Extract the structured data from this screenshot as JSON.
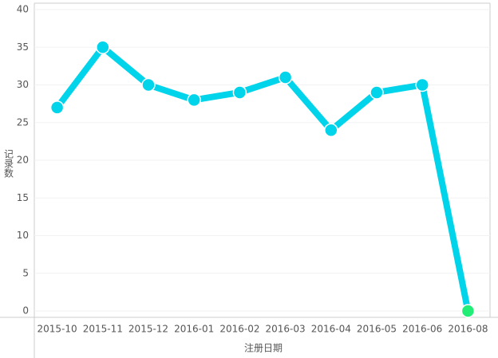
{
  "chart_data": {
    "type": "line",
    "x_label": "注册日期",
    "y_label": "记录数",
    "categories": [
      "2015-10",
      "2015-11",
      "2015-12",
      "2016-01",
      "2016-02",
      "2016-03",
      "2016-04",
      "2016-05",
      "2016-06",
      "2016-08"
    ],
    "series": [
      {
        "color": "#00d4ea",
        "values": [
          27,
          35,
          30,
          28,
          29,
          31,
          24,
          29,
          30,
          0
        ],
        "marker_colors": [
          "#00d4ea",
          "#00d4ea",
          "#00d4ea",
          "#00d4ea",
          "#00d4ea",
          "#00d4ea",
          "#00d4ea",
          "#00d4ea",
          "#00d4ea",
          "#22ee77"
        ]
      }
    ],
    "ylim": [
      0,
      40
    ],
    "yticks": [
      0,
      5,
      10,
      15,
      20,
      25,
      30,
      35,
      40
    ],
    "grid": true
  }
}
